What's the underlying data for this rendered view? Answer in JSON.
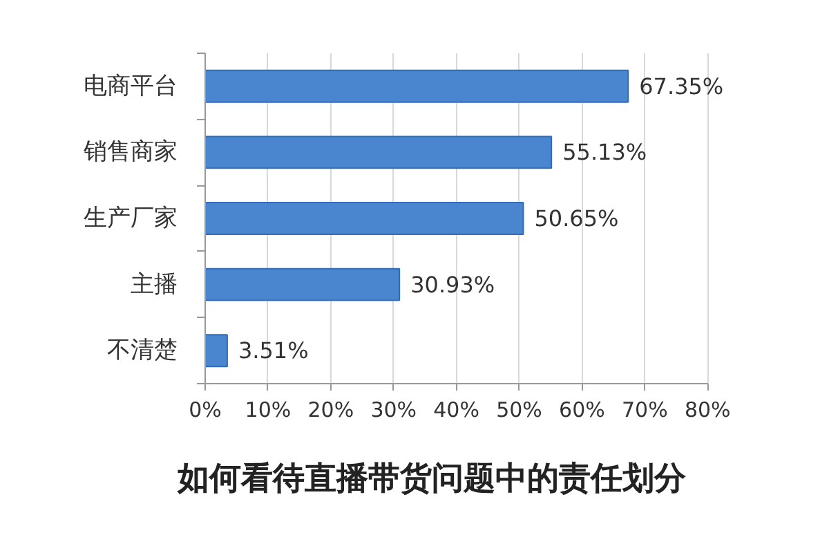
{
  "chart_data": {
    "type": "bar",
    "orientation": "horizontal",
    "title": "如何看待直播带货问题中的责任划分",
    "categories": [
      "电商平台",
      "销售商家",
      "生产厂家",
      "主播",
      "不清楚"
    ],
    "values": [
      67.35,
      55.13,
      50.65,
      30.93,
      3.51
    ],
    "value_labels": [
      "67.35%",
      "55.13%",
      "50.65%",
      "30.93%",
      "3.51%"
    ],
    "color": "#4a86d0",
    "xlim": [
      0,
      80
    ],
    "xticks": [
      {
        "value": 0,
        "label": "0%"
      },
      {
        "value": 10,
        "label": "10%"
      },
      {
        "value": 20,
        "label": "20%"
      },
      {
        "value": 30,
        "label": "30%"
      },
      {
        "value": 40,
        "label": "40%"
      },
      {
        "value": 50,
        "label": "50%"
      },
      {
        "value": 60,
        "label": "60%"
      },
      {
        "value": 70,
        "label": "70%"
      },
      {
        "value": 80,
        "label": "80%"
      }
    ],
    "grid": "x"
  }
}
